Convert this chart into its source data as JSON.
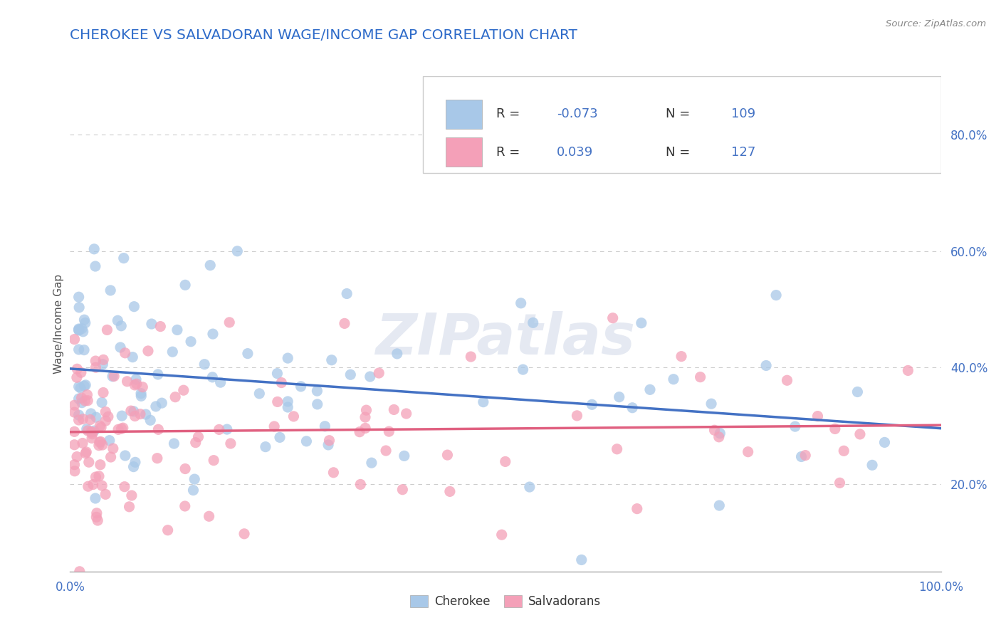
{
  "title": "CHEROKEE VS SALVADORAN WAGE/INCOME GAP CORRELATION CHART",
  "source": "Source: ZipAtlas.com",
  "ylabel": "Wage/Income Gap",
  "xlim": [
    0.0,
    1.0
  ],
  "ylim": [
    0.05,
    0.9
  ],
  "cherokee_R": -0.073,
  "cherokee_N": 109,
  "salvadoran_R": 0.039,
  "salvadoran_N": 127,
  "cherokee_color": "#a8c8e8",
  "salvadoran_color": "#f4a0b8",
  "cherokee_line_color": "#4472c4",
  "salvadoran_line_color": "#e06080",
  "bg_color": "#ffffff",
  "watermark": "ZIPatlas",
  "legend_text_color": "#4472c4",
  "title_color": "#2e6bc9",
  "grid_color": "#cccccc",
  "y_tick_vals": [
    0.2,
    0.4,
    0.6,
    0.8
  ],
  "y_tick_labels": [
    "20.0%",
    "40.0%",
    "60.0%",
    "80.0%"
  ],
  "x_tick_vals": [
    0.0,
    1.0
  ],
  "x_tick_labels": [
    "0.0%",
    "100.0%"
  ]
}
